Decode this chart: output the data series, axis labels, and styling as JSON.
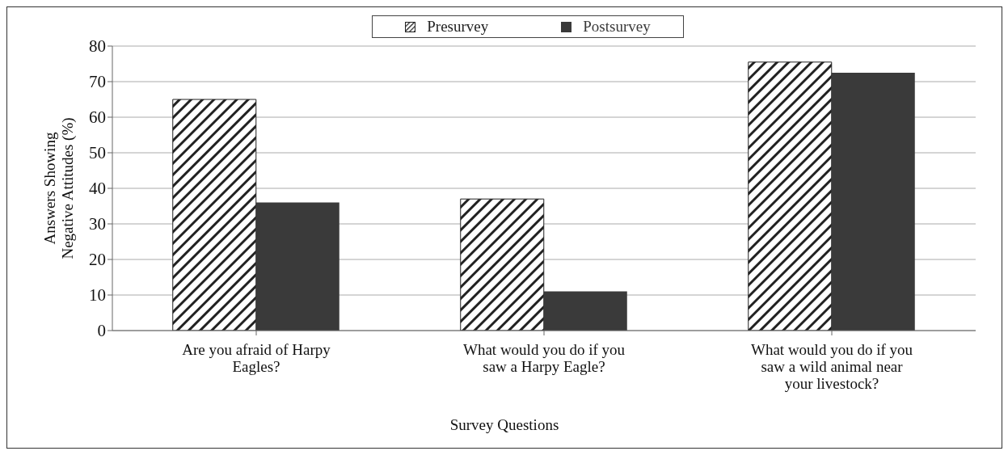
{
  "chart_data": {
    "type": "bar",
    "xlabel": "Survey Questions",
    "ylabel": "Answers Showing Negative Attitudes (%)",
    "categories": [
      "Are you afraid of Harpy Eagles?",
      "What would you do if you saw a Harpy Eagle?",
      "What would you do if you saw a wild animal near your livestock?"
    ],
    "series": [
      {
        "name": "Presurvey",
        "color": "#222222",
        "values": [
          65,
          37,
          75.5
        ]
      },
      {
        "name": "Postsurvey",
        "color": "#3a3a3a",
        "values": [
          36,
          11,
          72.5
        ]
      }
    ],
    "ylim": [
      0,
      80
    ],
    "yticks": [
      0,
      10,
      20,
      30,
      40,
      50,
      60,
      70,
      80
    ],
    "grid": "y",
    "legend": "top"
  }
}
